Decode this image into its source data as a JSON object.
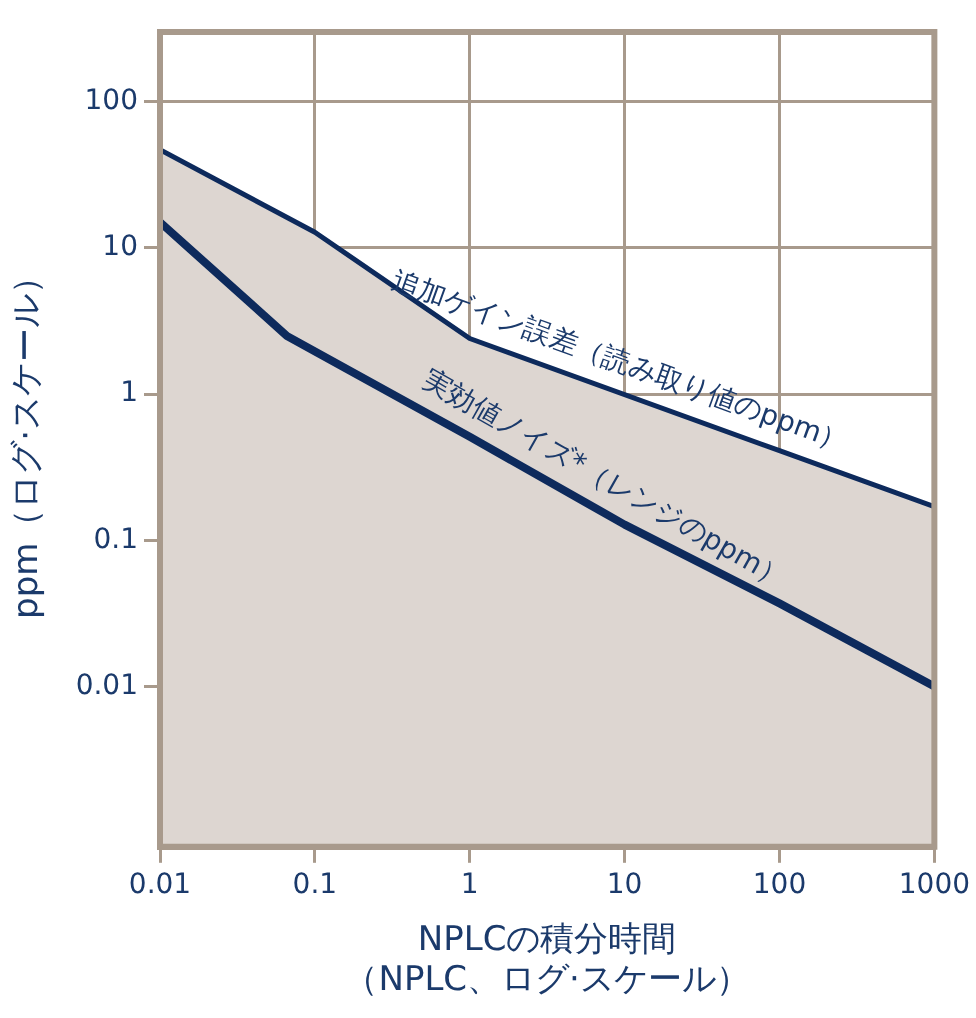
{
  "chart_data": {
    "type": "line",
    "xlabel": "NPLCの積分時間（NPLC、ログ·スケール）",
    "ylabel": "ppm（ログ·スケール）",
    "log": "xy",
    "grid": true,
    "legend": false,
    "xlim": [
      0.01,
      1000
    ],
    "xticks": [
      0.01,
      0.1,
      1,
      10,
      100,
      1000
    ],
    "ylim": [
      0.0008,
      300
    ],
    "yticks": [
      0.01,
      0.1,
      1,
      10,
      100
    ],
    "series": [
      {
        "type": "area",
        "color": "#0d2a5c",
        "x": [
          0.01,
          0.1,
          1,
          100,
          1000
        ],
        "values": [
          47,
          12.8,
          2.4,
          0.41,
          0.17
        ]
      },
      {
        "type": "line",
        "color": "#0d2a5c",
        "x": [
          0.01,
          0.066,
          1,
          10,
          100,
          1000
        ],
        "values": [
          15,
          2.5,
          0.51,
          0.128,
          0.037,
          0.01
        ]
      }
    ],
    "annotations": [
      {
        "text": "追加ゲイン誤差（読み取り値のppm）",
        "x": 8,
        "y": 1.08
      },
      {
        "text": "実効値ノイズ*（レンジのppm）",
        "x": 6,
        "y": 0.175
      }
    ]
  }
}
